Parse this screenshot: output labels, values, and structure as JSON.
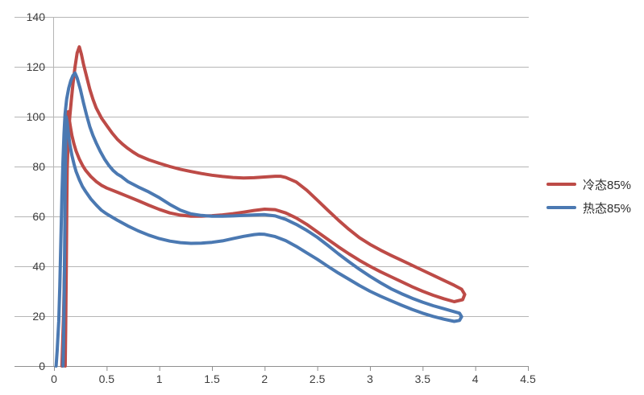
{
  "chart_data": {
    "type": "line",
    "title": "",
    "xlabel": "",
    "ylabel": "",
    "x_axis": {
      "min": 0,
      "max": 4.5,
      "tick_step": 0.5,
      "ticks": [
        "0",
        "0.5",
        "1",
        "1.5",
        "2",
        "2.5",
        "3",
        "3.5",
        "4",
        "4.5"
      ]
    },
    "y_axis": {
      "min": 0,
      "max": 140,
      "tick_step": 20,
      "ticks": [
        "0",
        "20",
        "40",
        "60",
        "80",
        "100",
        "120",
        "140"
      ]
    },
    "grid": "horizontal",
    "legend_position": "right",
    "series": [
      {
        "name": "冷态85%",
        "color": "#bd4b47",
        "points": [
          [
            0.075,
            0
          ],
          [
            0.09,
            20
          ],
          [
            0.1,
            40
          ],
          [
            0.11,
            58
          ],
          [
            0.12,
            72
          ],
          [
            0.13,
            85
          ],
          [
            0.14,
            94
          ],
          [
            0.15,
            100
          ],
          [
            0.165,
            107
          ],
          [
            0.18,
            113
          ],
          [
            0.2,
            120
          ],
          [
            0.22,
            125.5
          ],
          [
            0.24,
            128
          ],
          [
            0.26,
            125
          ],
          [
            0.28,
            121
          ],
          [
            0.31,
            116
          ],
          [
            0.34,
            111
          ],
          [
            0.37,
            107
          ],
          [
            0.4,
            103.5
          ],
          [
            0.45,
            99.5
          ],
          [
            0.5,
            96.5
          ],
          [
            0.55,
            93.5
          ],
          [
            0.6,
            91
          ],
          [
            0.65,
            89
          ],
          [
            0.7,
            87.3
          ],
          [
            0.75,
            85.8
          ],
          [
            0.8,
            84.5
          ],
          [
            0.9,
            82.7
          ],
          [
            1.0,
            81.3
          ],
          [
            1.1,
            80
          ],
          [
            1.2,
            78.9
          ],
          [
            1.3,
            78
          ],
          [
            1.4,
            77.2
          ],
          [
            1.5,
            76.5
          ],
          [
            1.6,
            76
          ],
          [
            1.7,
            75.6
          ],
          [
            1.8,
            75.4
          ],
          [
            1.9,
            75.5
          ],
          [
            2.0,
            75.8
          ],
          [
            2.1,
            76.1
          ],
          [
            2.15,
            76.1
          ],
          [
            2.2,
            75.6
          ],
          [
            2.3,
            73.8
          ],
          [
            2.4,
            70.5
          ],
          [
            2.5,
            66.5
          ],
          [
            2.6,
            62.5
          ],
          [
            2.7,
            58.5
          ],
          [
            2.8,
            54.8
          ],
          [
            2.9,
            51.5
          ],
          [
            3.0,
            48.8
          ],
          [
            3.1,
            46.5
          ],
          [
            3.2,
            44.4
          ],
          [
            3.3,
            42.4
          ],
          [
            3.4,
            40.4
          ],
          [
            3.5,
            38.4
          ],
          [
            3.6,
            36.4
          ],
          [
            3.7,
            34.4
          ],
          [
            3.8,
            32.4
          ],
          [
            3.87,
            30.8
          ],
          [
            3.9,
            28.7
          ],
          [
            3.88,
            26.6
          ],
          [
            3.8,
            25.8
          ],
          [
            3.7,
            27
          ],
          [
            3.6,
            28.4
          ],
          [
            3.5,
            30
          ],
          [
            3.4,
            31.8
          ],
          [
            3.3,
            33.8
          ],
          [
            3.2,
            35.8
          ],
          [
            3.1,
            37.8
          ],
          [
            3.0,
            40
          ],
          [
            2.9,
            42.4
          ],
          [
            2.8,
            45
          ],
          [
            2.7,
            47.8
          ],
          [
            2.6,
            50.8
          ],
          [
            2.5,
            53.8
          ],
          [
            2.4,
            56.8
          ],
          [
            2.3,
            59.4
          ],
          [
            2.2,
            61.4
          ],
          [
            2.1,
            62.7
          ],
          [
            2.0,
            62.9
          ],
          [
            1.9,
            62.4
          ],
          [
            1.8,
            61.7
          ],
          [
            1.7,
            61.1
          ],
          [
            1.6,
            60.6
          ],
          [
            1.5,
            60.3
          ],
          [
            1.4,
            60.1
          ],
          [
            1.3,
            60.1
          ],
          [
            1.2,
            60.5
          ],
          [
            1.1,
            61.4
          ],
          [
            1.0,
            62.8
          ],
          [
            0.9,
            64.5
          ],
          [
            0.8,
            66.3
          ],
          [
            0.7,
            68
          ],
          [
            0.6,
            69.7
          ],
          [
            0.5,
            71.4
          ],
          [
            0.45,
            72.5
          ],
          [
            0.4,
            74
          ],
          [
            0.35,
            76
          ],
          [
            0.3,
            78.5
          ],
          [
            0.27,
            80.5
          ],
          [
            0.24,
            83
          ],
          [
            0.21,
            86.2
          ],
          [
            0.19,
            89
          ],
          [
            0.17,
            92.5
          ],
          [
            0.155,
            96
          ],
          [
            0.145,
            99
          ],
          [
            0.135,
            102
          ],
          [
            0.128,
            88
          ],
          [
            0.122,
            65
          ],
          [
            0.116,
            38
          ],
          [
            0.111,
            15
          ],
          [
            0.106,
            0
          ]
        ]
      },
      {
        "name": "热态85%",
        "color": "#4b79b2",
        "points": [
          [
            0.02,
            0
          ],
          [
            0.03,
            6
          ],
          [
            0.045,
            18
          ],
          [
            0.055,
            32
          ],
          [
            0.065,
            50
          ],
          [
            0.075,
            68
          ],
          [
            0.085,
            82
          ],
          [
            0.095,
            93
          ],
          [
            0.105,
            101
          ],
          [
            0.12,
            107
          ],
          [
            0.14,
            111.5
          ],
          [
            0.16,
            114.5
          ],
          [
            0.18,
            116.5
          ],
          [
            0.2,
            117.5
          ],
          [
            0.22,
            115.5
          ],
          [
            0.25,
            111
          ],
          [
            0.28,
            105.5
          ],
          [
            0.31,
            100.5
          ],
          [
            0.34,
            96
          ],
          [
            0.37,
            92.5
          ],
          [
            0.4,
            89.5
          ],
          [
            0.44,
            86
          ],
          [
            0.48,
            83
          ],
          [
            0.52,
            80.5
          ],
          [
            0.56,
            78.5
          ],
          [
            0.6,
            77
          ],
          [
            0.64,
            76
          ],
          [
            0.7,
            74
          ],
          [
            0.8,
            71.8
          ],
          [
            0.9,
            69.8
          ],
          [
            1.0,
            67.5
          ],
          [
            1.1,
            64.8
          ],
          [
            1.2,
            62.5
          ],
          [
            1.3,
            61
          ],
          [
            1.4,
            60.4
          ],
          [
            1.5,
            60.1
          ],
          [
            1.6,
            60.1
          ],
          [
            1.7,
            60.2
          ],
          [
            1.8,
            60.4
          ],
          [
            1.9,
            60.6
          ],
          [
            2.0,
            60.7
          ],
          [
            2.1,
            60.2
          ],
          [
            2.2,
            58.8
          ],
          [
            2.3,
            56.8
          ],
          [
            2.4,
            54.4
          ],
          [
            2.5,
            51.6
          ],
          [
            2.6,
            48.4
          ],
          [
            2.7,
            45
          ],
          [
            2.8,
            41.8
          ],
          [
            2.9,
            38.8
          ],
          [
            3.0,
            36
          ],
          [
            3.1,
            33.4
          ],
          [
            3.2,
            31
          ],
          [
            3.3,
            29
          ],
          [
            3.4,
            27.2
          ],
          [
            3.5,
            25.6
          ],
          [
            3.6,
            24.2
          ],
          [
            3.7,
            23
          ],
          [
            3.8,
            21.8
          ],
          [
            3.85,
            21.2
          ],
          [
            3.87,
            19.8
          ],
          [
            3.85,
            18.3
          ],
          [
            3.8,
            17.9
          ],
          [
            3.7,
            18.8
          ],
          [
            3.6,
            19.9
          ],
          [
            3.5,
            21.2
          ],
          [
            3.4,
            22.7
          ],
          [
            3.3,
            24.4
          ],
          [
            3.2,
            26.2
          ],
          [
            3.1,
            28
          ],
          [
            3.0,
            30
          ],
          [
            2.9,
            32.3
          ],
          [
            2.8,
            34.8
          ],
          [
            2.7,
            37.3
          ],
          [
            2.6,
            40
          ],
          [
            2.5,
            42.8
          ],
          [
            2.4,
            45.4
          ],
          [
            2.3,
            48
          ],
          [
            2.2,
            50.3
          ],
          [
            2.1,
            51.9
          ],
          [
            2.0,
            52.8
          ],
          [
            1.95,
            52.9
          ],
          [
            1.9,
            52.7
          ],
          [
            1.8,
            52
          ],
          [
            1.7,
            51.1
          ],
          [
            1.6,
            50.2
          ],
          [
            1.5,
            49.6
          ],
          [
            1.4,
            49.3
          ],
          [
            1.3,
            49.2
          ],
          [
            1.2,
            49.5
          ],
          [
            1.1,
            50.1
          ],
          [
            1.0,
            51.1
          ],
          [
            0.9,
            52.5
          ],
          [
            0.8,
            54.2
          ],
          [
            0.7,
            56.2
          ],
          [
            0.6,
            58.5
          ],
          [
            0.5,
            61
          ],
          [
            0.45,
            62.5
          ],
          [
            0.4,
            64.6
          ],
          [
            0.35,
            67
          ],
          [
            0.3,
            70
          ],
          [
            0.27,
            72
          ],
          [
            0.24,
            74.7
          ],
          [
            0.21,
            78
          ],
          [
            0.19,
            81
          ],
          [
            0.17,
            84.5
          ],
          [
            0.15,
            89
          ],
          [
            0.135,
            94
          ],
          [
            0.125,
            98
          ],
          [
            0.115,
            100
          ],
          [
            0.11,
            86
          ],
          [
            0.105,
            66
          ],
          [
            0.1,
            43
          ],
          [
            0.095,
            22
          ],
          [
            0.09,
            8
          ],
          [
            0.085,
            0
          ]
        ]
      }
    ],
    "colors": {
      "grid": "#b5b5b5",
      "axis": "#8f8f8f",
      "tick_text": "#3d3d3d"
    }
  },
  "legend": {
    "items": [
      {
        "label": "冷态85%"
      },
      {
        "label": "热态85%"
      }
    ]
  }
}
